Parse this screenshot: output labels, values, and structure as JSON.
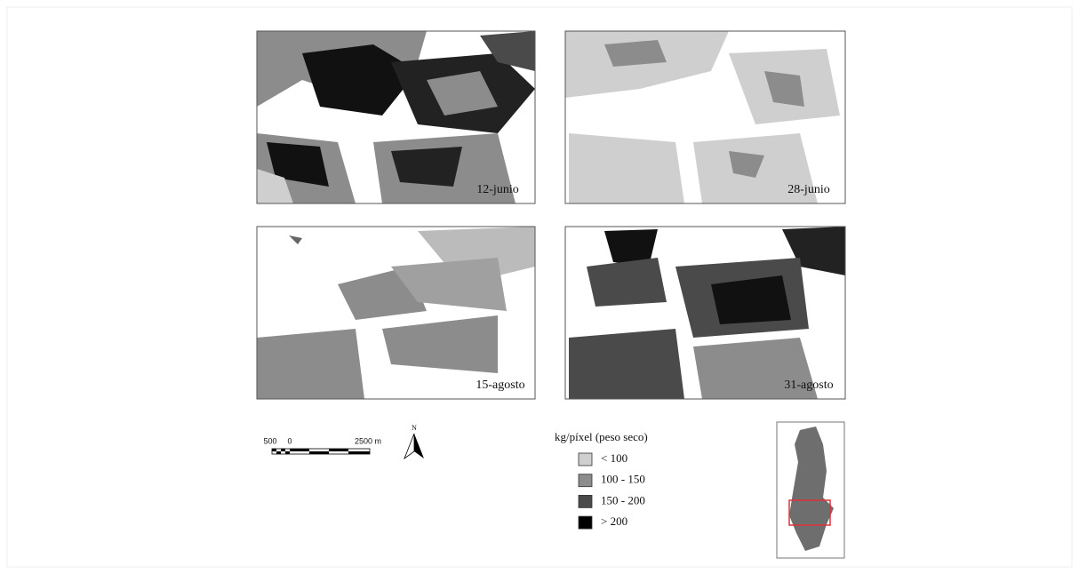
{
  "panels": [
    {
      "label": "12-junio"
    },
    {
      "label": "28-junio"
    },
    {
      "label": "15-agosto"
    },
    {
      "label": "31-agosto"
    }
  ],
  "scale_bar": {
    "labels": [
      "500",
      "0",
      "2500 m"
    ]
  },
  "north_arrow": {
    "label": "N"
  },
  "legend": {
    "title": "kg/píxel (peso seco)",
    "items": [
      {
        "label": "< 100",
        "color": "#cfcfcf"
      },
      {
        "label": "100 - 150",
        "color": "#8c8c8c"
      },
      {
        "label": "150 - 200",
        "color": "#4a4a4a"
      },
      {
        "label": "> 200",
        "color": "#000000"
      }
    ]
  }
}
